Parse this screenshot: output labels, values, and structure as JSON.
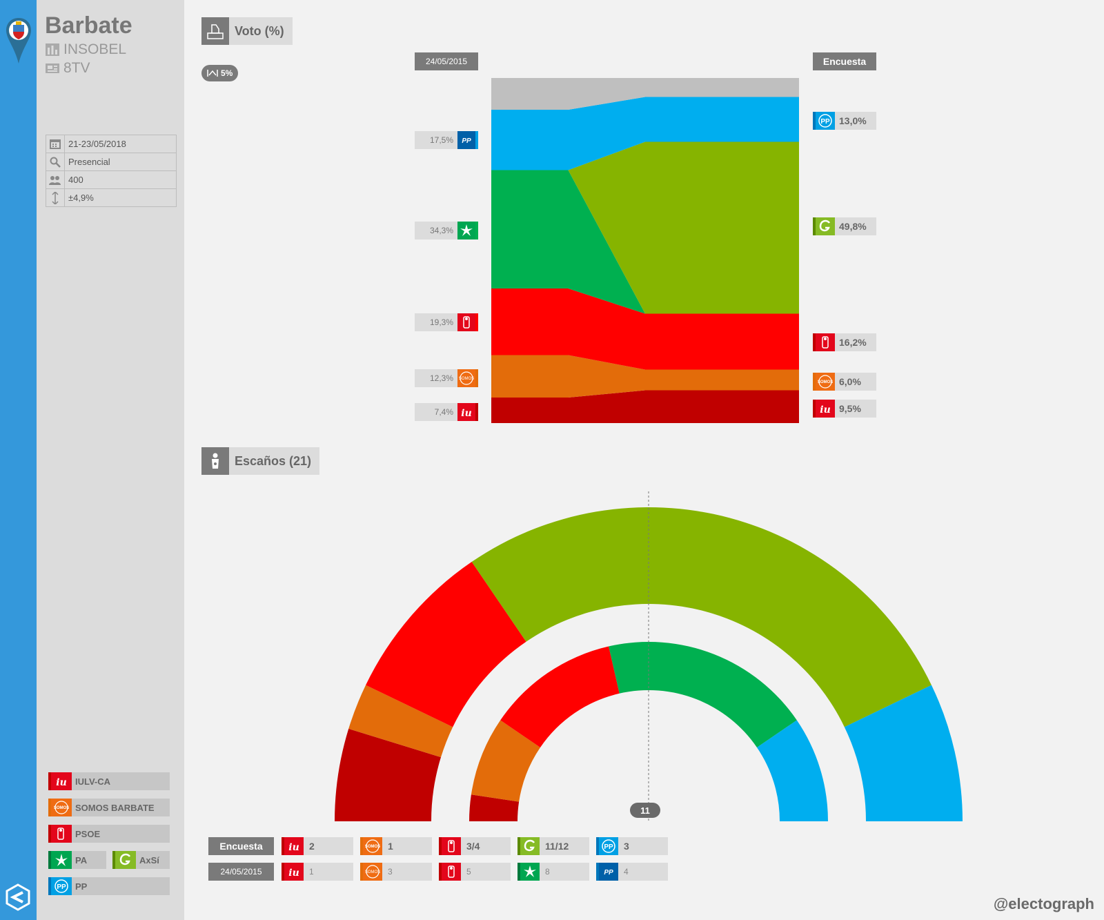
{
  "header": {
    "city": "Barbate",
    "pollster": "INSOBEL",
    "media": "8TV"
  },
  "meta": {
    "dates": "21-23/05/2018",
    "method": "Presencial",
    "sample": "400",
    "error": "±4,9%"
  },
  "vote_section": {
    "title": "Voto (%)",
    "threshold": "5%",
    "left_label": "24/05/2015",
    "right_label": "Encuesta"
  },
  "seats_section": {
    "title": "Escaños (21)",
    "majority": "11"
  },
  "legend": [
    {
      "name": "IULV-CA",
      "color": "#c8001e",
      "icon": "iu-logo-icon"
    },
    {
      "name": "SOMOS BARBATE",
      "color": "#ef6c13",
      "icon": "somos-logo-icon"
    },
    {
      "name": "PSOE",
      "color": "#e3061b",
      "icon": "psoe-logo-icon"
    },
    {
      "name": "PA",
      "color": "#00a651",
      "icon": "pa-logo-icon"
    },
    {
      "name": "AxSí",
      "color": "#86bb25",
      "icon": "axsi-logo-icon"
    },
    {
      "name": "PP",
      "color": "#00a0e4",
      "icon": "pp-logo-icon"
    }
  ],
  "colors": {
    "iu": "#c00000",
    "somos": "#e36c0a",
    "psoe": "#ff0000",
    "pa": "#00b050",
    "axsi": "#86b400",
    "pp": "#00aeef",
    "others": "#bfbfbf"
  },
  "chart_data": [
    {
      "type": "area",
      "x": [
        "24/05/2015",
        "Encuesta"
      ],
      "series": [
        {
          "name": "IULV-CA",
          "values": [
            7.4,
            9.5
          ]
        },
        {
          "name": "SOMOS BARBATE",
          "values": [
            12.3,
            6.0
          ]
        },
        {
          "name": "PSOE",
          "values": [
            19.3,
            16.2
          ]
        },
        {
          "name": "PA",
          "values": [
            34.3,
            0
          ]
        },
        {
          "name": "AxSí",
          "values": [
            0,
            49.8
          ]
        },
        {
          "name": "PP",
          "values": [
            17.5,
            13.0
          ]
        },
        {
          "name": "",
          "values": [
            9.2,
            5.5
          ]
        }
      ],
      "left_labels": [
        "17,5%",
        "34,3%",
        "19,3%",
        "12,3%",
        "7,4%"
      ],
      "right_labels": [
        "13,0%",
        "49,8%",
        "16,2%",
        "6,0%",
        "9,5%"
      ],
      "ylim": [
        0,
        100
      ]
    },
    {
      "type": "parliament",
      "total_seats": 21,
      "majority": 11,
      "outer_encuesta": [
        {
          "party": "IULV-CA",
          "seats": 2
        },
        {
          "party": "SOMOS BARBATE",
          "seats": 1
        },
        {
          "party": "PSOE",
          "seats": 3.5
        },
        {
          "party": "AxSí",
          "seats": 11.5
        },
        {
          "party": "PP",
          "seats": 3
        }
      ],
      "inner_2015": [
        {
          "party": "IULV-CA",
          "seats": 1
        },
        {
          "party": "SOMOS BARBATE",
          "seats": 3
        },
        {
          "party": "PSOE",
          "seats": 5
        },
        {
          "party": "PA",
          "seats": 8
        },
        {
          "party": "PP",
          "seats": 4
        }
      ],
      "table": {
        "encuesta_label": "Encuesta",
        "result_label": "24/05/2015",
        "encuesta": [
          "2",
          "1",
          "3/4",
          "11/12",
          "3"
        ],
        "result": [
          "1",
          "3",
          "5",
          "8",
          "4"
        ]
      }
    }
  ],
  "footer": {
    "handle": "@electograph"
  }
}
